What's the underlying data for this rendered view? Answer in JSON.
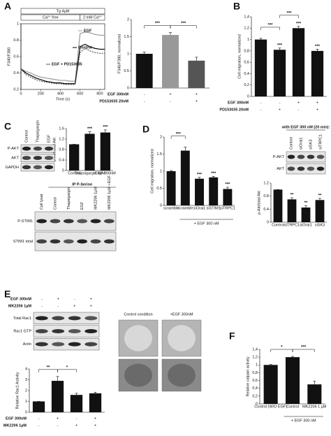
{
  "panels": {
    "labels": [
      "A",
      "B",
      "C",
      "D",
      "E",
      "F"
    ]
  },
  "chart_data": [
    {
      "type": "line",
      "header": {
        "drug": "Tg 4µM",
        "phases": [
          "Ca²⁺ free",
          "2 mM Ca²⁺"
        ]
      },
      "x_label": "Time (s)",
      "y_label": "F340/F380",
      "x": [
        0,
        50,
        100,
        150,
        200,
        250,
        300,
        350,
        400,
        450,
        500,
        550,
        600,
        650,
        700,
        750,
        800,
        850
      ],
      "series": [
        {
          "name": "EGF",
          "color": "#9a9a9a",
          "values": [
            0.45,
            0.42,
            0.4,
            0.37,
            0.35,
            0.34,
            0.33,
            0.32,
            0.31,
            0.31,
            0.3,
            0.3,
            0.88,
            0.9,
            0.89,
            0.87,
            0.86,
            0.86
          ]
        },
        {
          "name": "Control",
          "color": "#000000",
          "values": [
            0.45,
            0.4,
            0.37,
            0.34,
            0.32,
            0.3,
            0.29,
            0.28,
            0.28,
            0.27,
            0.27,
            0.27,
            0.72,
            0.75,
            0.72,
            0.7,
            0.69,
            0.69
          ]
        },
        {
          "name": "EGF + PD153035",
          "color": "#555555",
          "values": [
            0.45,
            0.38,
            0.35,
            0.32,
            0.3,
            0.29,
            0.28,
            0.27,
            0.27,
            0.26,
            0.26,
            0.26,
            0.65,
            0.7,
            0.67,
            0.65,
            0.64,
            0.64
          ]
        }
      ],
      "xlim": [
        0,
        850
      ],
      "xticks": [
        0,
        200,
        400,
        600,
        800
      ],
      "ylim": [
        0.2,
        1.0
      ],
      "yticks": [
        0.2,
        0.4,
        0.6,
        0.8,
        1
      ]
    },
    {
      "type": "bar",
      "y_label": "F340/F380, normalized",
      "values": [
        1.0,
        1.55,
        0.8
      ],
      "errors": [
        0.05,
        0.07,
        0.1
      ],
      "colors": [
        "#111111",
        "#999999",
        "#555555"
      ],
      "ylim": [
        0,
        2
      ],
      "yticks": [
        0,
        0.5,
        1,
        1.5,
        2
      ],
      "comparisons": [
        "***",
        "***"
      ],
      "conditions": [
        {
          "label": "EGF 300nM",
          "values": [
            "-",
            "+",
            "+"
          ]
        },
        {
          "label": "PD153035 20nM",
          "values": [
            "-",
            "-",
            "+"
          ]
        }
      ]
    },
    {
      "type": "bar",
      "y_label": "Cell migration, normalized",
      "values": [
        1.0,
        0.82,
        1.2,
        0.8
      ],
      "errors": [
        0.02,
        0.03,
        0.03,
        0.03
      ],
      "color": "#111111",
      "ylim": [
        0,
        1.4
      ],
      "yticks": [
        0,
        {
          "value": 0.2,
          "label": "0,2"
        },
        {
          "value": 0.4,
          "label": "0,4"
        },
        {
          "value": 0.6,
          "label": "0,6"
        },
        {
          "value": 0.8,
          "label": "0,8"
        },
        1,
        {
          "value": 1.2,
          "label": "1,2"
        },
        {
          "value": 1.4,
          "label": "1,4"
        }
      ],
      "significance": [
        null,
        "***",
        "***",
        "***"
      ],
      "comparisons": [
        "***",
        "***"
      ],
      "conditions": [
        {
          "label": "EGF 300nM",
          "values": [
            "-",
            "-",
            "+",
            "+"
          ]
        },
        {
          "label": "PD153035 20nM",
          "values": [
            "-",
            "+",
            "-",
            "+"
          ]
        }
      ]
    },
    {
      "type": "bar",
      "y_label": "p-Akt/total Akt",
      "categories": [
        "Control",
        "Thapsigargin 4µM",
        "EGF 300nM"
      ],
      "values": [
        1.0,
        1.4,
        1.45
      ],
      "errors": [
        0,
        0.08,
        0.1
      ],
      "color": "#111111",
      "ylim": [
        0,
        1.6
      ],
      "yticks": [
        0,
        0.4,
        0.8,
        1.2,
        1.6
      ],
      "significance": [
        null,
        "***",
        "***"
      ]
    },
    {
      "type": "bar",
      "y_label": "Cell migration, normalized",
      "categories": [
        "scramble",
        "scramble",
        "siOrai1",
        "siSTIM1",
        "siTRPC1"
      ],
      "group_label": "+ EGF 300 nM",
      "values": [
        1.0,
        1.6,
        0.78,
        0.82,
        0.48
      ],
      "errors": [
        0.02,
        0.1,
        0.04,
        0.03,
        0.05
      ],
      "color": "#111111",
      "ylim": [
        0,
        2
      ],
      "yticks": [
        0,
        0.5,
        1,
        1.5,
        2
      ],
      "significance": [
        null,
        null,
        "***",
        "***",
        "***"
      ],
      "comparisons": [
        "***"
      ]
    },
    {
      "type": "bar",
      "y_label": "p-Akt/total Akt",
      "categories": [
        "Control",
        "siTRPC1",
        "siOrai1",
        "siSK3"
      ],
      "values": [
        1.0,
        0.7,
        0.45,
        0.68
      ],
      "errors": [
        0,
        0.05,
        0.06,
        0.05
      ],
      "color": "#111111",
      "ylim": [
        0,
        1.2
      ],
      "yticks": [
        0,
        0.4,
        0.8,
        1.2
      ],
      "significance": [
        null,
        "**",
        "**",
        "**"
      ]
    },
    {
      "type": "bar",
      "y_label": "Relative Rac1 Activity",
      "values": [
        1.0,
        2.9,
        1.6,
        1.75
      ],
      "errors": [
        0,
        0.4,
        0.15,
        0.1
      ],
      "color": "#111111",
      "ylim": [
        0,
        4
      ],
      "yticks": [
        0,
        1,
        2,
        3,
        4
      ],
      "comparisons": [
        "**",
        "*"
      ],
      "conditions": [
        {
          "label": "EGF 300nM",
          "values": [
            "-",
            "+",
            "-",
            "+"
          ]
        },
        {
          "label": "MK2206 1µM",
          "values": [
            "-",
            "-",
            "+",
            "+"
          ]
        }
      ]
    },
    {
      "type": "bar",
      "y_label": "Relative calpain activity",
      "categories": [
        "Control (W/O EGF)",
        "Control",
        "MK2206 1 µM"
      ],
      "group_label": "+ EGF 300 nM",
      "values": [
        1.0,
        1.2,
        0.5
      ],
      "errors": [
        0.01,
        0.02,
        0.08
      ],
      "color": "#111111",
      "ylim": [
        0,
        1.4
      ],
      "yticks": [
        0,
        {
          "value": 0.2,
          "label": "0,2"
        },
        {
          "value": 0.4,
          "label": "0,4"
        },
        {
          "value": 0.6,
          "label": "0,6"
        },
        {
          "value": 0.8,
          "label": "0,8"
        },
        1,
        {
          "value": 1.2,
          "label": "1,2"
        },
        {
          "value": 1.4,
          "label": "1,4"
        }
      ],
      "comparisons": [
        "*",
        "***"
      ]
    }
  ],
  "blots": [
    {
      "columns": [
        "Control",
        "Thapsigargin",
        "EGF"
      ],
      "rows": [
        "P-AKT",
        "AKT",
        "GAPDH"
      ]
    },
    {
      "header": "IP P-Serine",
      "columns": [
        "Cell lysat",
        "Control",
        "Thapsigargin",
        "EGF",
        "MK2206 1µM",
        "MK2206 1µM +EGF"
      ],
      "rows": [
        "P-STIM1",
        "STIM1 total"
      ]
    },
    {
      "header": "with EGF 300 nM (20 min):",
      "columns": [
        "Control",
        "siOrai1",
        "siSK3",
        "siTRPC1"
      ],
      "rows": [
        "P-AKT",
        "AKT"
      ]
    },
    {
      "conditions": [
        {
          "label": "EGF 300nM",
          "values": [
            "-",
            "+",
            "-",
            "+"
          ]
        },
        {
          "label": "MK2206 1µM",
          "values": [
            "-",
            "-",
            "+",
            "+"
          ]
        }
      ],
      "rows": [
        "Total Rac1",
        "Rac1 GTP",
        "Actin"
      ]
    }
  ],
  "images": {
    "captions": [
      "Control condition",
      "+EGF 300nM"
    ]
  }
}
